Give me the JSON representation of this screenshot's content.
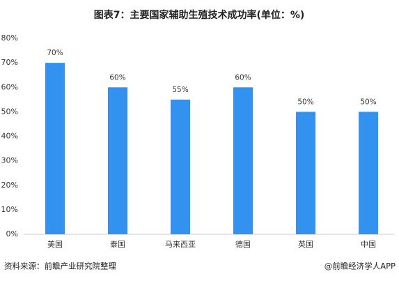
{
  "chart_data": {
    "type": "bar",
    "title": "图表7：主要国家辅助生殖技术成功率(单位：%)",
    "categories": [
      "美国",
      "泰国",
      "马来西亚",
      "德国",
      "英国",
      "中国"
    ],
    "values": [
      70,
      60,
      55,
      60,
      50,
      50
    ],
    "value_labels": [
      "70%",
      "60%",
      "55%",
      "60%",
      "50%",
      "50%"
    ],
    "color": "#3391f0",
    "ylim": [
      0,
      80
    ],
    "yticks": [
      {
        "value": 0,
        "label": "0%"
      },
      {
        "value": 10,
        "label": "10%"
      },
      {
        "value": 20,
        "label": "20%"
      },
      {
        "value": 30,
        "label": "30%"
      },
      {
        "value": 40,
        "label": "40%"
      },
      {
        "value": 50,
        "label": "50%"
      },
      {
        "value": 60,
        "label": "60%"
      },
      {
        "value": 70,
        "label": "70%"
      },
      {
        "value": 80,
        "label": "80%"
      }
    ],
    "grid": false,
    "source": "资料来源：前瞻产业研究院整理",
    "credit": "@前瞻经济学人APP"
  }
}
